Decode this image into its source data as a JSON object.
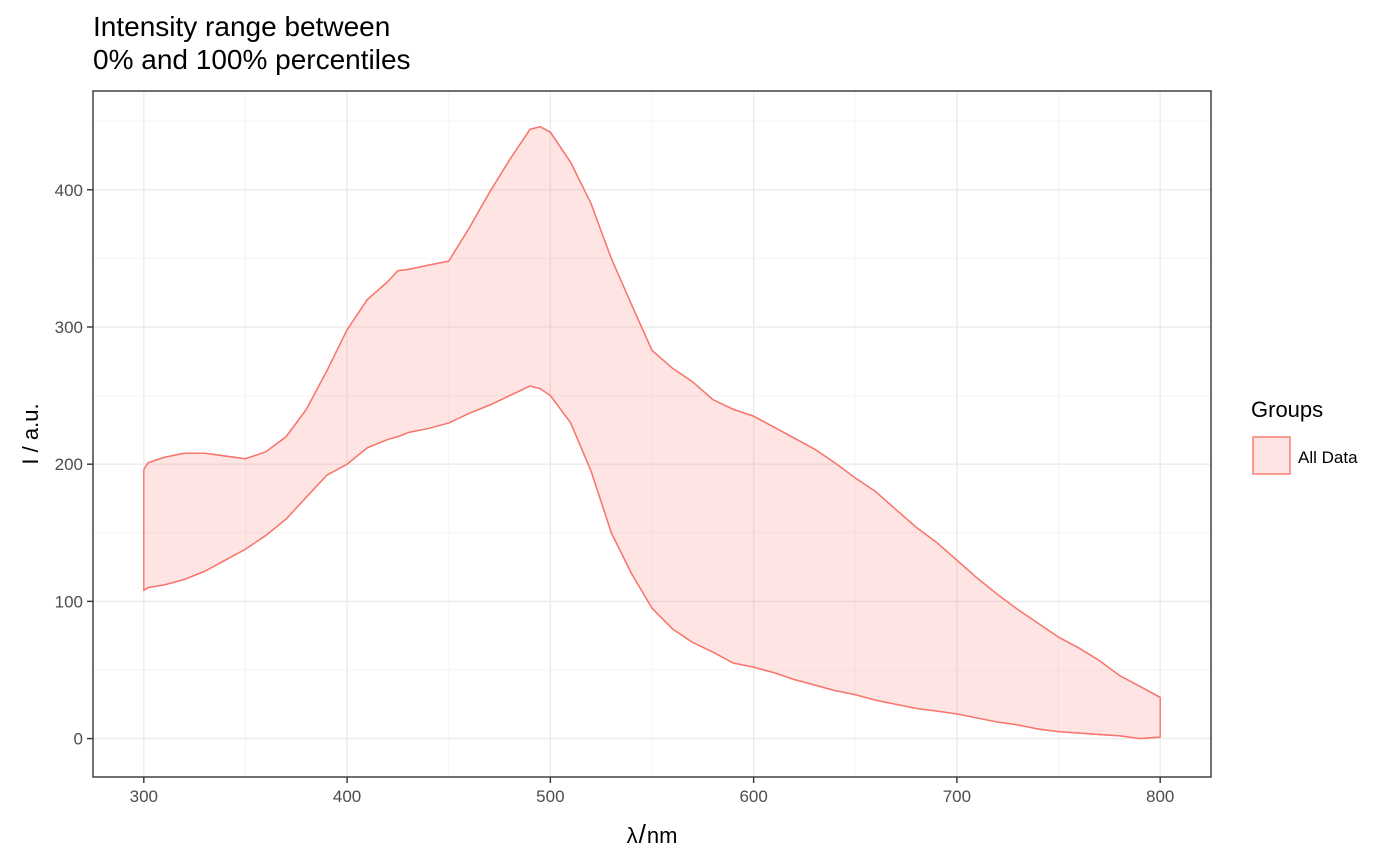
{
  "chart_data": {
    "type": "area",
    "title_lines": [
      "Intensity range between",
      "0% and 100% percentiles"
    ],
    "xlabel_symbol": "λ",
    "xlabel_unit": "nm",
    "ylabel": "I / a.u.",
    "xlim": [
      275,
      825
    ],
    "ylim": [
      -28,
      472
    ],
    "x_ticks": [
      300,
      400,
      500,
      600,
      700,
      800
    ],
    "y_ticks": [
      0,
      100,
      200,
      300,
      400
    ],
    "grid": true,
    "legend": {
      "title": "Groups",
      "position": "right",
      "entries": [
        "All Data"
      ]
    },
    "colors": {
      "line": "#f8766d",
      "fill": "#f8766d",
      "fill_opacity": 0.2,
      "grid_major": "#ebebeb",
      "grid_minor": "#f5f5f5"
    },
    "series": [
      {
        "name": "All Data",
        "x": [
          300,
          302,
          310,
          320,
          330,
          340,
          350,
          360,
          370,
          380,
          390,
          400,
          410,
          420,
          425,
          430,
          440,
          450,
          460,
          470,
          480,
          490,
          495,
          500,
          510,
          520,
          530,
          540,
          550,
          560,
          570,
          580,
          590,
          600,
          610,
          620,
          630,
          640,
          650,
          660,
          670,
          680,
          690,
          700,
          710,
          720,
          730,
          740,
          750,
          760,
          770,
          780,
          790,
          800
        ],
        "upper": [
          196,
          201,
          205,
          208,
          208,
          206,
          204,
          209,
          220,
          240,
          268,
          298,
          320,
          333,
          341,
          342,
          345,
          348,
          372,
          398,
          422,
          444,
          446,
          442,
          420,
          390,
          350,
          316,
          283,
          270,
          260,
          247,
          240,
          235,
          227,
          219,
          211,
          201,
          190,
          180,
          167,
          154,
          143,
          130,
          117,
          105,
          94,
          84,
          74,
          66,
          57,
          46,
          38,
          30
        ],
        "lower": [
          108,
          110,
          112,
          116,
          122,
          130,
          138,
          148,
          160,
          176,
          192,
          200,
          212,
          218,
          220,
          223,
          226,
          230,
          237,
          243,
          250,
          257,
          255,
          250,
          230,
          195,
          150,
          120,
          95,
          80,
          70,
          63,
          55,
          52,
          48,
          43,
          39,
          35,
          32,
          28,
          25,
          22,
          20,
          18,
          15,
          12,
          10,
          7,
          5,
          4,
          3,
          2,
          0,
          1
        ]
      }
    ]
  }
}
